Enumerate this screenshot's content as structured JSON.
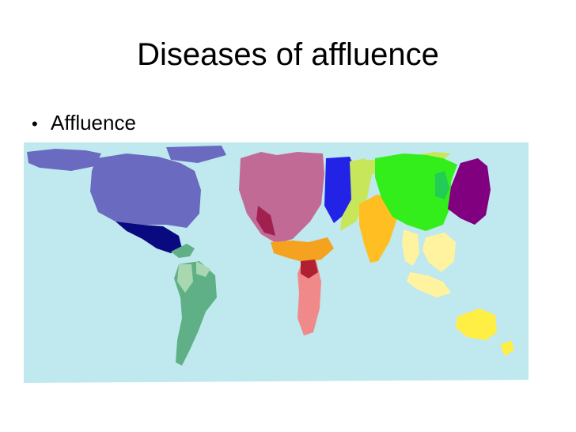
{
  "slide": {
    "title": "Diseases of affluence",
    "bullets": [
      {
        "text": "Affluence"
      }
    ]
  },
  "map": {
    "colors": {
      "ocean": "#bfe9ef",
      "north_america": "#6a6ac0",
      "central_america": "#0a0a80",
      "south_america": "#5fb087",
      "south_america_light": "#a9d8b0",
      "western_europe": "#c26a96",
      "eastern_europe": "#2323e8",
      "north_africa": "#f4a21f",
      "africa": "#f08a8a",
      "middle_east": "#c8e65a",
      "south_asia": "#ffbf22",
      "east_asia": "#33ee1a",
      "japan": "#800080",
      "southeast_asia": "#fff3a0",
      "oceania": "#ffee44"
    }
  }
}
